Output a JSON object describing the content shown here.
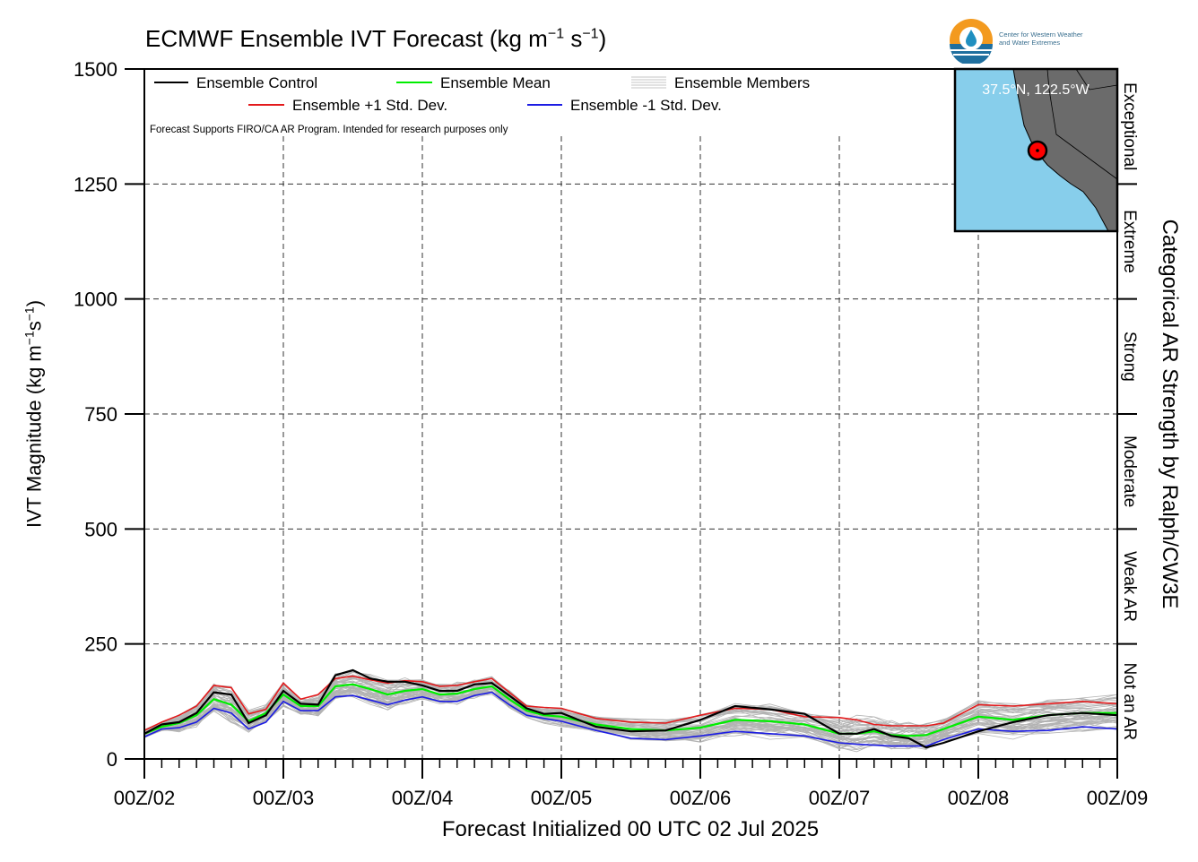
{
  "title": {
    "main": "ECMWF Ensemble IVT Forecast (kg m",
    "exp1": "−1",
    "mid": " s",
    "exp2": "−1",
    "end": ")"
  },
  "ylabel": {
    "a": "IVT Magnitude (kg m",
    "e1": "−1",
    "b": "s",
    "e2": "−1",
    "c": ")"
  },
  "xlabel": "Forecast Initialized 00 UTC 02 Jul 2025",
  "right_label": "Categorical AR Strength by Ralph/CW3E",
  "note": "Forecast Supports FIRO/CA AR Program. Intended for research purposes only",
  "logo": {
    "line1": "Center for Western Weather",
    "line2": "and Water Extremes"
  },
  "inset": {
    "label": "37.5°N, 122.5°W",
    "ocean_color": "#87ceeb",
    "land_color": "#6b6b6b"
  },
  "categories": [
    "Exceptional",
    "Extreme",
    "Strong",
    "Moderate",
    "Weak AR",
    "Not an AR"
  ],
  "legend": {
    "control": "Ensemble Control",
    "mean": "Ensemble Mean",
    "members": "Ensemble Members",
    "plus": "Ensemble +1 Std. Dev.",
    "minus": "Ensemble -1 Std. Dev."
  },
  "colors": {
    "control": "#000000",
    "mean": "#00ee00",
    "members": "#b3b3b3",
    "plus": "#e31a1c",
    "minus": "#1c1ce3"
  },
  "chart_data": {
    "type": "line",
    "x_unit": "days since 00Z/02 Jul 2025",
    "xlim": [
      0,
      7
    ],
    "ylim": [
      0,
      1500
    ],
    "yticks": [
      0,
      250,
      500,
      750,
      1000,
      1250,
      1500
    ],
    "xtick_labels": [
      "00Z/02",
      "00Z/03",
      "00Z/04",
      "00Z/05",
      "00Z/06",
      "00Z/07",
      "00Z/08",
      "00Z/09"
    ],
    "grid": true,
    "x": [
      0,
      0.125,
      0.25,
      0.375,
      0.5,
      0.625,
      0.75,
      0.875,
      1.0,
      1.125,
      1.25,
      1.375,
      1.5,
      1.625,
      1.75,
      1.875,
      2.0,
      2.125,
      2.25,
      2.375,
      2.5,
      2.625,
      2.75,
      2.875,
      3.0,
      3.25,
      3.5,
      3.75,
      4.0,
      4.25,
      4.5,
      4.75,
      5.0,
      5.125,
      5.25,
      5.375,
      5.5,
      5.625,
      5.75,
      6.0,
      6.25,
      6.5,
      6.75,
      7.0
    ],
    "series": [
      {
        "name": "Ensemble Control",
        "values": [
          55,
          75,
          80,
          100,
          145,
          140,
          78,
          95,
          148,
          120,
          118,
          182,
          193,
          175,
          168,
          168,
          160,
          148,
          148,
          162,
          165,
          138,
          110,
          98,
          100,
          70,
          60,
          62,
          85,
          115,
          108,
          98,
          55,
          55,
          65,
          50,
          45,
          25,
          35,
          60,
          80,
          95,
          100,
          95
        ]
      },
      {
        "name": "Ensemble Mean",
        "values": [
          55,
          70,
          78,
          95,
          130,
          118,
          82,
          100,
          140,
          115,
          115,
          158,
          162,
          152,
          140,
          148,
          152,
          140,
          142,
          152,
          158,
          130,
          105,
          95,
          92,
          75,
          65,
          62,
          68,
          85,
          82,
          75,
          55,
          55,
          60,
          52,
          50,
          52,
          65,
          92,
          85,
          95,
          100,
          100
        ]
      },
      {
        "name": "Ensemble +1 Std. Dev.",
        "values": [
          62,
          80,
          95,
          115,
          160,
          155,
          98,
          108,
          165,
          130,
          140,
          175,
          180,
          172,
          165,
          170,
          168,
          158,
          160,
          168,
          175,
          145,
          115,
          112,
          110,
          88,
          80,
          78,
          95,
          110,
          108,
          92,
          90,
          85,
          75,
          72,
          72,
          72,
          78,
          118,
          115,
          120,
          125,
          120
        ]
      },
      {
        "name": "Ensemble -1 Std. Dev.",
        "values": [
          48,
          65,
          68,
          80,
          110,
          100,
          65,
          80,
          125,
          105,
          105,
          135,
          138,
          128,
          118,
          128,
          135,
          125,
          125,
          138,
          145,
          118,
          95,
          88,
          82,
          62,
          45,
          42,
          50,
          60,
          55,
          50,
          35,
          32,
          30,
          28,
          28,
          28,
          42,
          65,
          60,
          62,
          70,
          65
        ]
      }
    ]
  }
}
